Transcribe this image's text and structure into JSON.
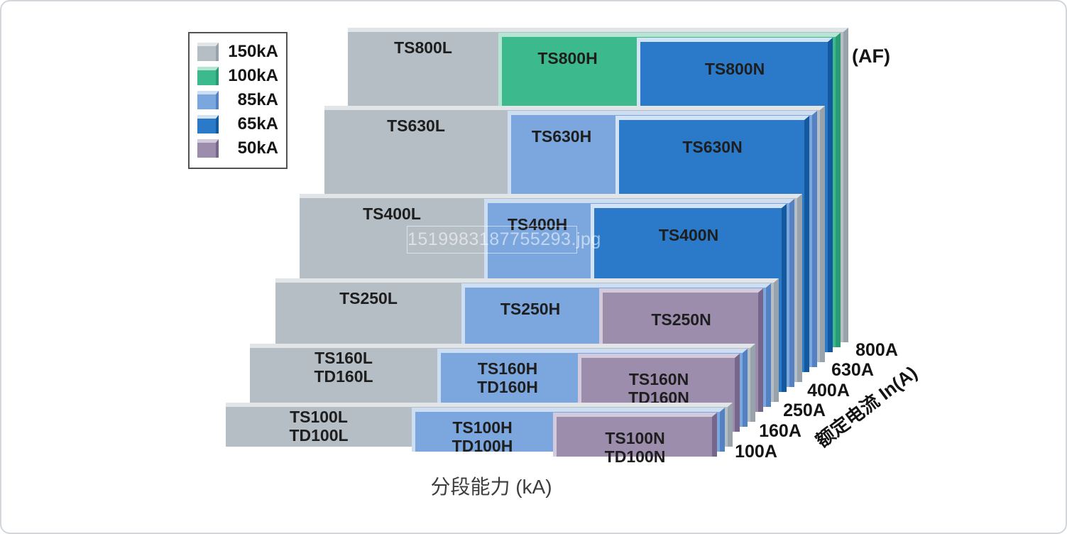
{
  "legend": {
    "items": [
      {
        "label": "150kA",
        "color": "#b5bdc5"
      },
      {
        "label": "100kA",
        "color": "#3db98e"
      },
      {
        "label": "85kA",
        "color": "#7ba7de"
      },
      {
        "label": "65kA",
        "color": "#2a7ac9"
      },
      {
        "label": "50kA",
        "color": "#9d8dad"
      }
    ]
  },
  "rows": [
    {
      "l": [
        "TS800L"
      ],
      "h": [
        "TS800H"
      ],
      "n": [
        "TS800N"
      ],
      "l_capacity": "150kA",
      "h_capacity": "100kA",
      "n_capacity": "65kA"
    },
    {
      "l": [
        "TS630L"
      ],
      "h": [
        "TS630H"
      ],
      "n": [
        "TS630N"
      ],
      "l_capacity": "150kA",
      "h_capacity": "85kA",
      "n_capacity": "65kA"
    },
    {
      "l": [
        "TS400L"
      ],
      "h": [
        "TS400H"
      ],
      "n": [
        "TS400N"
      ],
      "l_capacity": "150kA",
      "h_capacity": "85kA",
      "n_capacity": "65kA"
    },
    {
      "l": [
        "TS250L"
      ],
      "h": [
        "TS250H"
      ],
      "n": [
        "TS250N"
      ],
      "l_capacity": "150kA",
      "h_capacity": "85kA",
      "n_capacity": "50kA"
    },
    {
      "l": [
        "TS160L",
        "TD160L"
      ],
      "h": [
        "TS160H",
        "TD160H"
      ],
      "n": [
        "TS160N",
        "TD160N"
      ],
      "l_capacity": "150kA",
      "h_capacity": "85kA",
      "n_capacity": "50kA"
    },
    {
      "l": [
        "TS100L",
        "TD100L"
      ],
      "h": [
        "TS100H",
        "TD100H"
      ],
      "n": [
        "TS100N",
        "TD100N"
      ],
      "l_capacity": "150kA",
      "h_capacity": "85kA",
      "n_capacity": "50kA"
    }
  ],
  "axis": {
    "unit_label": "(AF)",
    "right_title": "额定电流 In(A)",
    "ticks": [
      "800A",
      "630A",
      "400A",
      "250A",
      "160A",
      "100A"
    ],
    "x_label": "分段能力 (kA)"
  },
  "watermark": "1519983187755293.jpg",
  "chart_data": {
    "type": "bar",
    "title": "",
    "xlabel": "分段能力 (kA)",
    "ylabel": "额定电流 In(A)",
    "categories": [
      "100A",
      "160A",
      "250A",
      "400A",
      "630A",
      "800A"
    ],
    "series": [
      {
        "name": "L",
        "models": [
          "TS100L/TD100L",
          "TS160L/TD160L",
          "TS250L",
          "TS400L",
          "TS630L",
          "TS800L"
        ],
        "breaking_capacity_kA": [
          150,
          150,
          150,
          150,
          150,
          150
        ]
      },
      {
        "name": "H",
        "models": [
          "TS100H/TD100H",
          "TS160H/TD160H",
          "TS250H",
          "TS400H",
          "TS630H",
          "TS800H"
        ],
        "breaking_capacity_kA": [
          85,
          85,
          85,
          85,
          85,
          100
        ]
      },
      {
        "name": "N",
        "models": [
          "TS100N/TD100N",
          "TS160N/TD160N",
          "TS250N",
          "TS400N",
          "TS630N",
          "TS800N"
        ],
        "breaking_capacity_kA": [
          50,
          50,
          50,
          65,
          65,
          65
        ]
      }
    ],
    "legend_entries": [
      "150kA",
      "100kA",
      "85kA",
      "65kA",
      "50kA"
    ],
    "legend_colors": {
      "150kA": "#b5bdc5",
      "100kA": "#3db98e",
      "85kA": "#7ba7de",
      "65kA": "#2a7ac9",
      "50kA": "#9d8dad"
    },
    "legend_position": "top-left",
    "frame_sizes_AF": [
      "100A",
      "160A",
      "250A",
      "400A",
      "630A",
      "800A"
    ]
  }
}
